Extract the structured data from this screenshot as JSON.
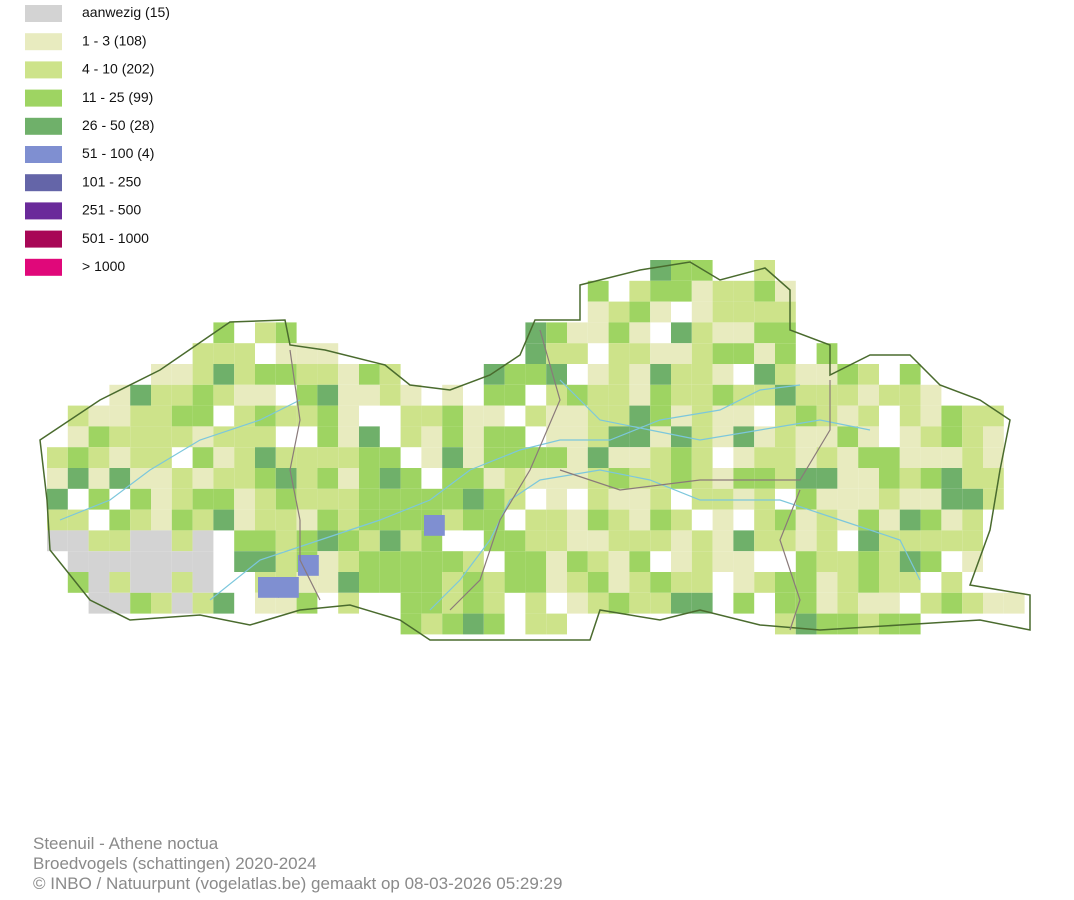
{
  "legend": {
    "items": [
      {
        "label": "aanwezig (15)",
        "color": "#d3d3d3"
      },
      {
        "label": "1 - 3 (108)",
        "color": "#e8ebbf"
      },
      {
        "label": "4 - 10 (202)",
        "color": "#cde38a"
      },
      {
        "label": "11 - 25 (99)",
        "color": "#9ed462"
      },
      {
        "label": "26 - 50 (28)",
        "color": "#6fb06a"
      },
      {
        "label": "51 - 100 (4)",
        "color": "#7f8fd1"
      },
      {
        "label": "101 - 250",
        "color": "#6465a8"
      },
      {
        "label": "251 - 500",
        "color": "#6a2a9a"
      },
      {
        "label": "501 - 1000",
        "color": "#a80756"
      },
      {
        "label": "> 1000",
        "color": "#e0087a"
      }
    ]
  },
  "footer": {
    "lines": [
      "Steenuil - Athene noctua",
      "Broedvogels (schattingen) 2020-2024",
      "© INBO / Natuurpunt (vogelatlas.be) gemaakt op 08-03-2026 05:29:29"
    ]
  }
}
